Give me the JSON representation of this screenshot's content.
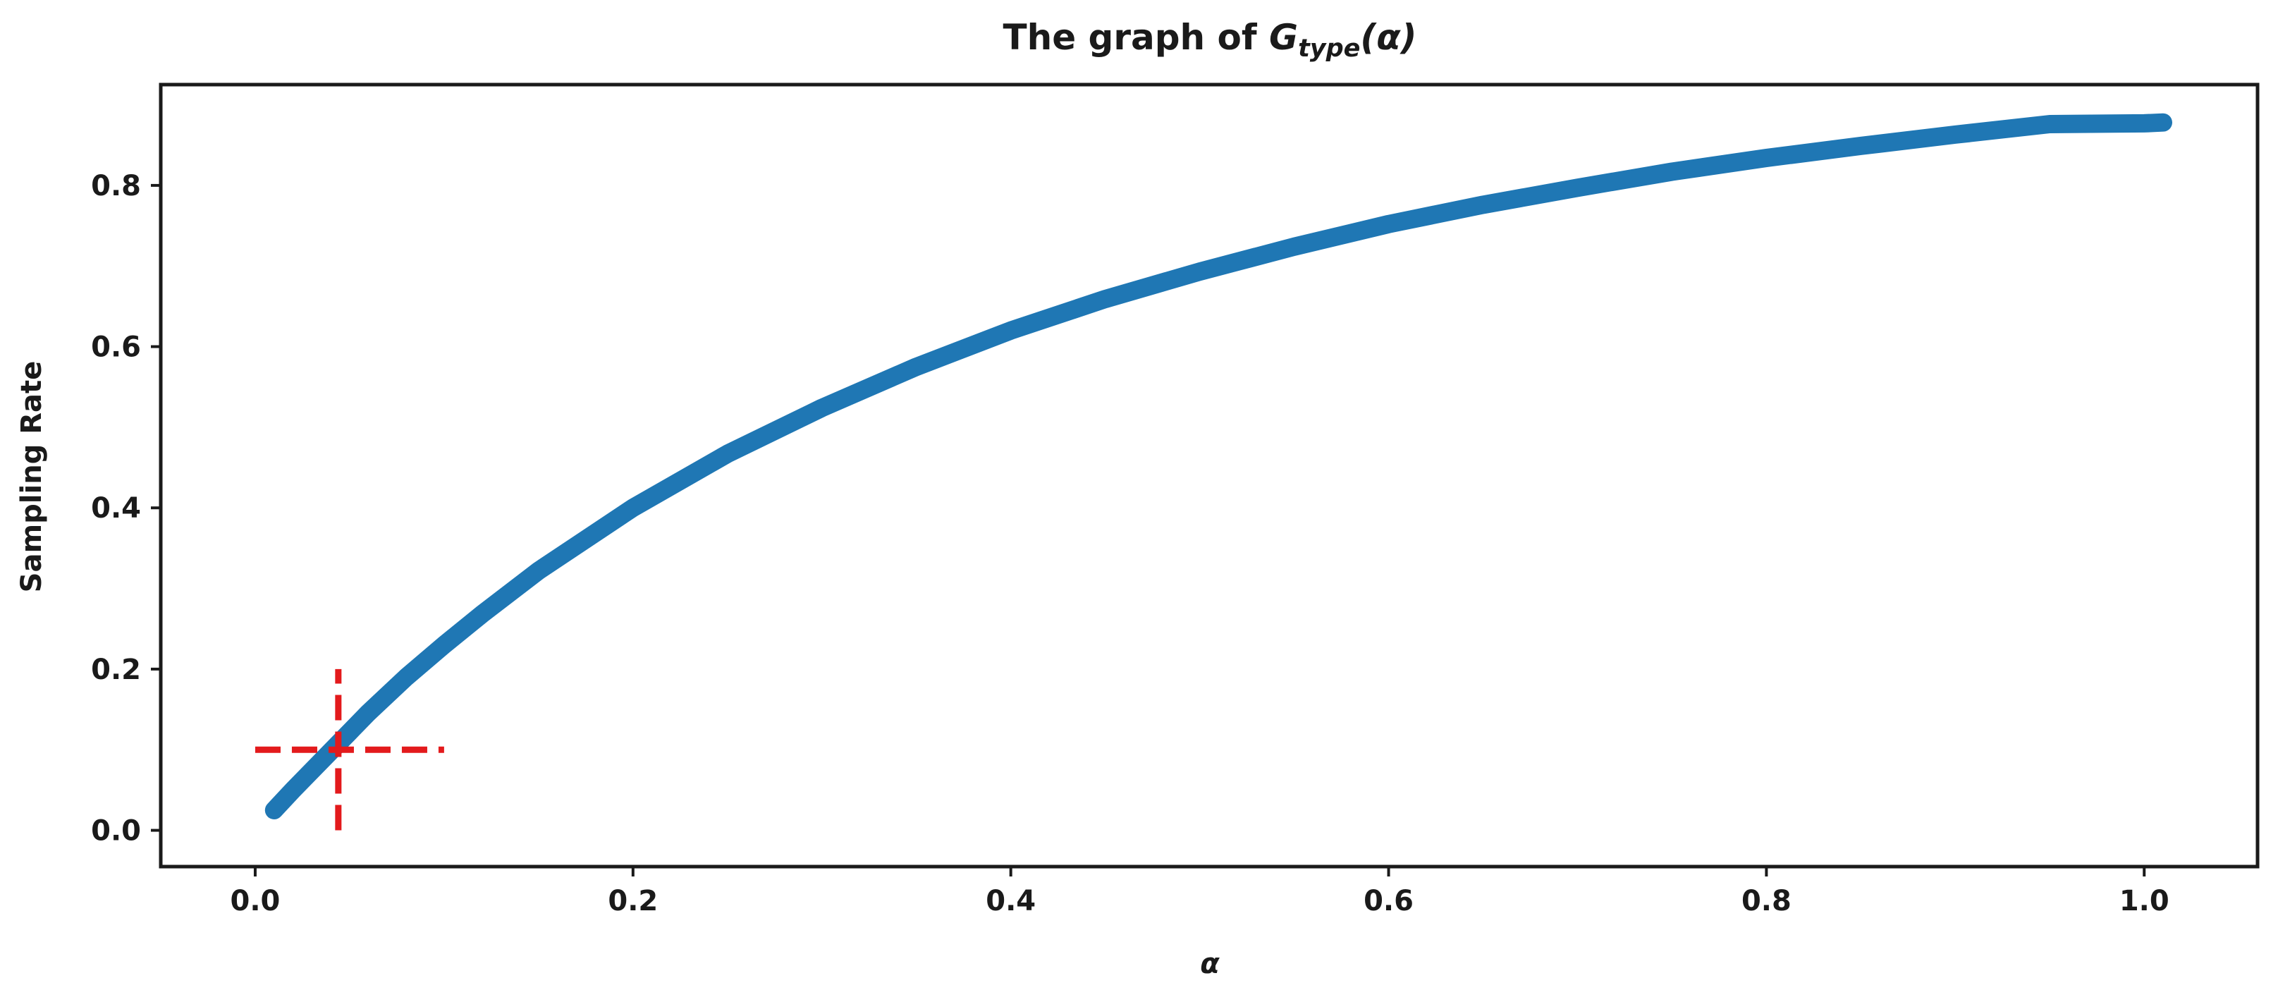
{
  "chart_data": {
    "type": "line",
    "title": {
      "prefix": "The graph of ",
      "main_symbol": "G",
      "subscript": "type",
      "argument": "(α)"
    },
    "xlabel": "α",
    "ylabel": "Sampling Rate",
    "xlim": [
      -0.05,
      1.06
    ],
    "ylim": [
      -0.045,
      0.925
    ],
    "xticks": [
      0.0,
      0.2,
      0.4,
      0.6,
      0.8,
      1.0
    ],
    "xtick_labels": [
      "0.0",
      "0.2",
      "0.4",
      "0.6",
      "0.8",
      "1.0"
    ],
    "yticks": [
      0.0,
      0.2,
      0.4,
      0.6,
      0.8
    ],
    "ytick_labels": [
      "0.0",
      "0.2",
      "0.4",
      "0.6",
      "0.8"
    ],
    "grid": false,
    "legend": "none",
    "series": [
      {
        "color": "#1f77b4",
        "x": [
          0.01,
          0.02,
          0.03,
          0.04,
          0.05,
          0.06,
          0.08,
          0.1,
          0.12,
          0.15,
          0.2,
          0.25,
          0.3,
          0.35,
          0.4,
          0.45,
          0.5,
          0.55,
          0.6,
          0.65,
          0.7,
          0.75,
          0.8,
          0.85,
          0.9,
          0.95,
          1.0,
          1.01
        ],
        "y": [
          0.025,
          0.05,
          0.074,
          0.098,
          0.122,
          0.146,
          0.19,
          0.23,
          0.268,
          0.322,
          0.4,
          0.467,
          0.524,
          0.575,
          0.62,
          0.659,
          0.693,
          0.724,
          0.752,
          0.776,
          0.797,
          0.817,
          0.834,
          0.849,
          0.863,
          0.876,
          0.877,
          0.878
        ]
      }
    ],
    "annotations": [
      {
        "type": "hline",
        "y": 0.1,
        "x_range": [
          0.0,
          0.1
        ],
        "color": "#e31a1c",
        "style": "dashed"
      },
      {
        "type": "vline",
        "x": 0.044,
        "y_range": [
          0.0,
          0.2
        ],
        "color": "#e31a1c",
        "style": "dashed"
      }
    ],
    "colors": {
      "axis": "#1a1a1a",
      "series": "#1f77b4",
      "marker": "#e31a1c"
    }
  }
}
